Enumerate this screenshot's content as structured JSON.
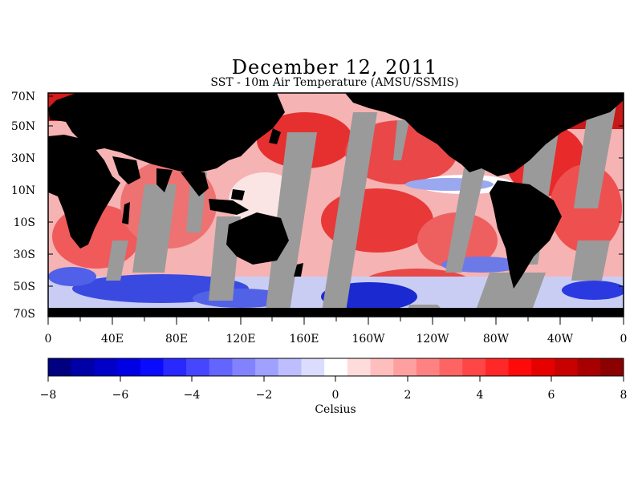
{
  "title": "December 12, 2011",
  "subtitle": "SST - 10m Air Temperature (AMSU/SSMIS)",
  "map": {
    "colors": {
      "land": "#000000",
      "no_data": "#9a9a9a",
      "warm": "#e8161d",
      "cold": "#1a2fd6",
      "neutral": "#ffffff"
    },
    "lat_labels": [
      "70N",
      "50N",
      "30N",
      "10N",
      "10S",
      "30S",
      "50S",
      "70S"
    ],
    "lon_labels": [
      "0",
      "40E",
      "80E",
      "120E",
      "160E",
      "160W",
      "120W",
      "80W",
      "40W",
      "0"
    ]
  },
  "colorbar": {
    "min": -8,
    "max": 8,
    "ticks": [
      "−8",
      "−6",
      "−4",
      "−2",
      "0",
      "2",
      "4",
      "6",
      "8"
    ],
    "label": "Celsius",
    "colors": [
      "#000080",
      "#0000a8",
      "#0000c8",
      "#0000e4",
      "#0a0aff",
      "#2828ff",
      "#4646ff",
      "#6464ff",
      "#8282ff",
      "#a0a0ff",
      "#bebeff",
      "#dcdcff",
      "#ffffff",
      "#ffdcdc",
      "#ffbebe",
      "#ffa0a0",
      "#ff8282",
      "#ff6464",
      "#ff4646",
      "#ff2828",
      "#ff0a0a",
      "#e60000",
      "#c80000",
      "#a80000",
      "#8b0000"
    ]
  }
}
